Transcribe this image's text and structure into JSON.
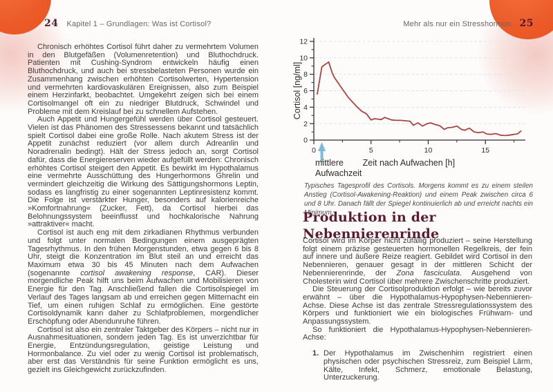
{
  "left_page": {
    "page_number": "24",
    "header": "Kapitel 1 – Grundlagen: Was ist Cortisol?",
    "p1": "Chronisch erhöhtes Cortisol führt daher zu vermehrtem Volumen in den Blutgefäßen (Volumenretention) und Bluthochdruck. Patienten mit Cushing-Syndrom entwickeln häufig einen Bluthochdruck, und auch bei stressbelasteten Personen wurde ein Zusammenhang zwischen erhöhten Cortisolwerten, Hypertension und vermehrten kardiovaskulären Ereignissen, also zum Beispiel einem Herzinfarkt, beobachtet. Umgekehrt zeigen sich bei einem Cortisolmangel oft ein zu niedriger Blutdruck, Schwindel und Probleme mit dem Kreislauf bei zu schnellem Aufstehen.",
    "p2": "Auch Appetit und Hungergefühl werden über Cortisol gesteuert. Vielen ist das Phänomen des Stressessens bekannt und tatsächlich spielt Cortisol dabei eine große Rolle. Nach akutem Stress ist der Appetit zunächst reduziert (vor allem durch Adreanlin und Noradrenalin bedingt). Hält der Stress jedoch an, sorgt Cortisol dafür, dass die Energiereserven wieder aufgefüllt werden: Chronisch erhöhtes Cortisol steigert den Appetit. Es bewirkt im Hypothalamus eine vermehrte Ausschüttung des Hungerhormons Ghrelin und vermindert gleichzeitig die Wirkung des Sättigungshormons Leptin, sodass es langfristig zu einer sogenannten Leptinresistenz kommt. Die Folge ist verstärkter Hunger, besonders auf kalorienreiche »Komfortnahrung« (Zucker, Fett), da Cortisol hierbei das Belohnungssystem beeinflusst und hochkalorische Nahrung »attraktiver« macht.",
    "p3a": "Cortisol ist auch eng mit dem zirkadianen Rhythmus verbunden und folgt unter normalen Bedingungen einem ausgeprägten Tagesrhythmus. In den frühen Morgenstunden, etwa gegen 6 bis 8 Uhr, steigt die Konzentration im Blut steil an und erreicht das Maximum etwa 30 bis 45 Minuten nach dem Aufwachen (sogenannte ",
    "p3em": "cortisol awakening response",
    "p3b": ", CAR). Dieser morgendliche Peak hilft uns beim Aufwachen und Mobilisieren von Energie für den Tag. Anschließend fallen die Cortisolspiegel im Verlauf des Tages langsam ab und erreichen gegen Mitternacht ein Tief, um einen ruhigen Schlaf zu ermöglichen. Eine gestörte Cortisoldynamik kann daher zu Schlafproblemen, morgendlicher Erschöpfung oder Abendunruhe führen.",
    "p4": "Cortisol ist also ein zentraler Taktgeber des Körpers – nicht nur in Ausnahmesituationen, sondern jeden Tag. Es ist unverzichtbar für Energie, Entzündungsregulation, geistige Leistung und Hormonbalance. Zu viel oder zu wenig Cortisol ist problematisch, aber erst das Verständnis für seine Funktion ermöglicht es uns, gezielt ins Gleichgewicht zurückzufinden."
  },
  "right_page": {
    "page_number": "25",
    "header": "Mehr als nur ein Stresshormon",
    "figure_caption": "Typisches Tagesprofil des Cortisols. Morgens kommt es zu einem steilen Anstieg (Cortisol-Awakening-Reaktion) und einem Peak zwischen circa 6 und 8 Uhr. Danach fällt der Spiegel kontinuierlich ab und erreicht nachts ein Minimum.",
    "section_heading": "Produktion in der Nebennierenrinde",
    "p1a": "Cortisol wird im Körper nicht zufällig produziert – seine Herstellung folgt einem präzise gesteuerten hormonellen Regelkreis, der fein auf innere und äußere Reize reagiert. Gebildet wird Cortisol in den Nebennieren, genauer gesagt in der mittleren Schicht der Nebennierenrinde, der ",
    "p1em": "Zona fasciculata",
    "p1b": ". Ausgehend von Cholesterin wird Cortisol über mehrere Zwischenschritte produziert.",
    "p2": "Die Steuerung der Cortisolproduktion erfolgt – wie bereits zuvor erwähnt – über die Hypothalamus-Hypophysen-Nebennieren-Achse. Diese Achse ist das zentrale Stressregulationssystem des Körpers und funktioniert wie ein biologisches Frühwarn- und Anpassungssystem.",
    "p3": "So funktioniert die Hypothalamus-Hypophysen-Nebennieren-Achse:",
    "list": [
      {
        "num": "1.",
        "text": "Der Hypothalamus im Zwischenhirn registriert einen physischen oder psychischen Stressreiz, zum Beispiel Lärm, Kälte, Infekt, Schmerz, emotionale Belastung, Unterzuckerung."
      }
    ]
  },
  "chart_data": {
    "type": "line",
    "title": "",
    "xlabel": "Zeit nach Aufwachen [h]",
    "ylabel": "Cortisol [ng/ml]",
    "xlim": [
      0,
      18.5
    ],
    "ylim": [
      0,
      12
    ],
    "x_ticks": [
      0,
      5,
      10,
      15
    ],
    "x_minor_ticks": [
      2.5,
      7.5,
      12.5,
      17.5
    ],
    "y_ticks": [
      0,
      2,
      4,
      6,
      8,
      10,
      12
    ],
    "y_minor_ticks": [
      1,
      3,
      5,
      7,
      9,
      11
    ],
    "grid": "horizontal-dashed",
    "legend": "none",
    "line_color": "#a8433d",
    "grid_color": "#d6e8ef",
    "axis_color": "#2e2a28",
    "annotation": {
      "lines": [
        "mittlere",
        "Aufwachzeit"
      ],
      "x": 0.7,
      "arrow_color": "#7cb9dc"
    },
    "series": [
      {
        "name": "Cortisol-Tagesprofil",
        "points": [
          [
            0.3,
            5.6
          ],
          [
            0.7,
            8.9
          ],
          [
            1.0,
            9.2
          ],
          [
            1.3,
            9.5
          ],
          [
            1.6,
            8.2
          ],
          [
            1.8,
            7.6
          ],
          [
            2.2,
            6.8
          ],
          [
            2.6,
            6.0
          ],
          [
            3.0,
            5.2
          ],
          [
            3.4,
            4.6
          ],
          [
            3.8,
            4.0
          ],
          [
            4.2,
            3.5
          ],
          [
            4.6,
            3.2
          ],
          [
            5.0,
            2.45
          ],
          [
            5.3,
            2.6
          ],
          [
            5.6,
            2.55
          ],
          [
            5.9,
            2.5
          ],
          [
            6.2,
            2.75
          ],
          [
            6.5,
            2.6
          ],
          [
            6.8,
            2.45
          ],
          [
            7.2,
            2.4
          ],
          [
            7.6,
            2.4
          ],
          [
            8.0,
            2.35
          ],
          [
            8.4,
            2.3
          ],
          [
            8.7,
            1.8
          ],
          [
            9.1,
            2.1
          ],
          [
            9.5,
            1.7
          ],
          [
            9.9,
            2.0
          ],
          [
            10.2,
            2.1
          ],
          [
            10.6,
            1.9
          ],
          [
            11.0,
            1.75
          ],
          [
            11.4,
            1.3
          ],
          [
            11.7,
            1.5
          ],
          [
            12.1,
            1.55
          ],
          [
            12.5,
            1.7
          ],
          [
            12.9,
            1.3
          ],
          [
            13.2,
            1.2
          ],
          [
            13.6,
            1.45
          ],
          [
            14.0,
            1.0
          ],
          [
            14.4,
            0.9
          ],
          [
            14.8,
            1.0
          ],
          [
            15.1,
            0.75
          ],
          [
            15.5,
            0.7
          ],
          [
            15.9,
            0.8
          ],
          [
            16.3,
            0.6
          ],
          [
            16.7,
            0.55
          ],
          [
            17.1,
            0.6
          ],
          [
            17.5,
            0.7
          ],
          [
            17.8,
            0.75
          ],
          [
            18.1,
            1.1
          ]
        ]
      }
    ]
  },
  "colors": {
    "accent_orange": "#ec5a29",
    "accent_pink": "#f3c6c1",
    "heading_maroon": "#5a1b33",
    "body_text": "#3d3a39",
    "curve_red": "#a8433d",
    "arrow_blue": "#7cb9dc"
  }
}
